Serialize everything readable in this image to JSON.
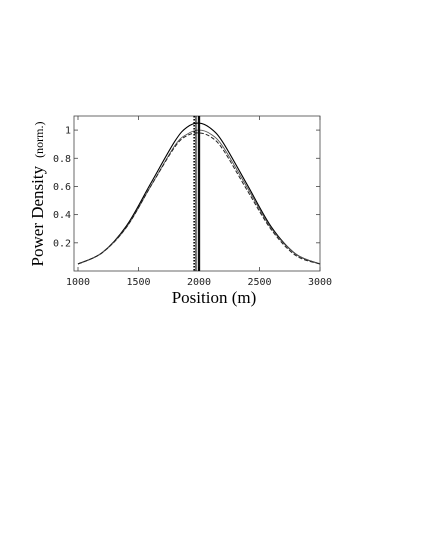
{
  "chart_data": {
    "type": "line",
    "title": "",
    "xlabel": "Position (m)",
    "ylabel_main": "Power Density",
    "ylabel_sub": "(norm.)",
    "xlim": [
      1000,
      3000
    ],
    "ylim": [
      0,
      1.1
    ],
    "xticks": [
      1000,
      1500,
      2000,
      2500,
      3000
    ],
    "yticks": [
      0.2,
      0.4,
      0.6,
      0.8,
      1
    ],
    "grid": false,
    "legend": "none",
    "series": [
      {
        "style": "solid",
        "x": [
          1000,
          1200,
          1400,
          1600,
          1800,
          1900,
          2000,
          2100,
          2200,
          2400,
          2600,
          2800,
          3000
        ],
        "y": [
          0.05,
          0.13,
          0.32,
          0.62,
          0.92,
          1.02,
          1.05,
          1.01,
          0.91,
          0.61,
          0.31,
          0.12,
          0.05
        ]
      },
      {
        "style": "solid-gray",
        "x": [
          1000,
          1200,
          1400,
          1600,
          1800,
          1900,
          2000,
          2100,
          2200,
          2400,
          2600,
          2800,
          3000
        ],
        "y": [
          0.05,
          0.13,
          0.31,
          0.6,
          0.89,
          0.97,
          1.0,
          0.97,
          0.88,
          0.59,
          0.3,
          0.12,
          0.05
        ]
      },
      {
        "style": "dashed",
        "x": [
          1000,
          1200,
          1400,
          1600,
          1800,
          1900,
          2000,
          2100,
          2200,
          2400,
          2600,
          2800,
          3000
        ],
        "y": [
          0.05,
          0.13,
          0.31,
          0.6,
          0.88,
          0.96,
          0.98,
          0.95,
          0.86,
          0.57,
          0.29,
          0.11,
          0.05
        ]
      }
    ],
    "vlines": [
      {
        "x": 1960,
        "style": "dotted"
      },
      {
        "x": 1975,
        "style": "solid"
      },
      {
        "x": 1995,
        "style": "solid"
      },
      {
        "x": 2005,
        "style": "solid"
      }
    ]
  }
}
